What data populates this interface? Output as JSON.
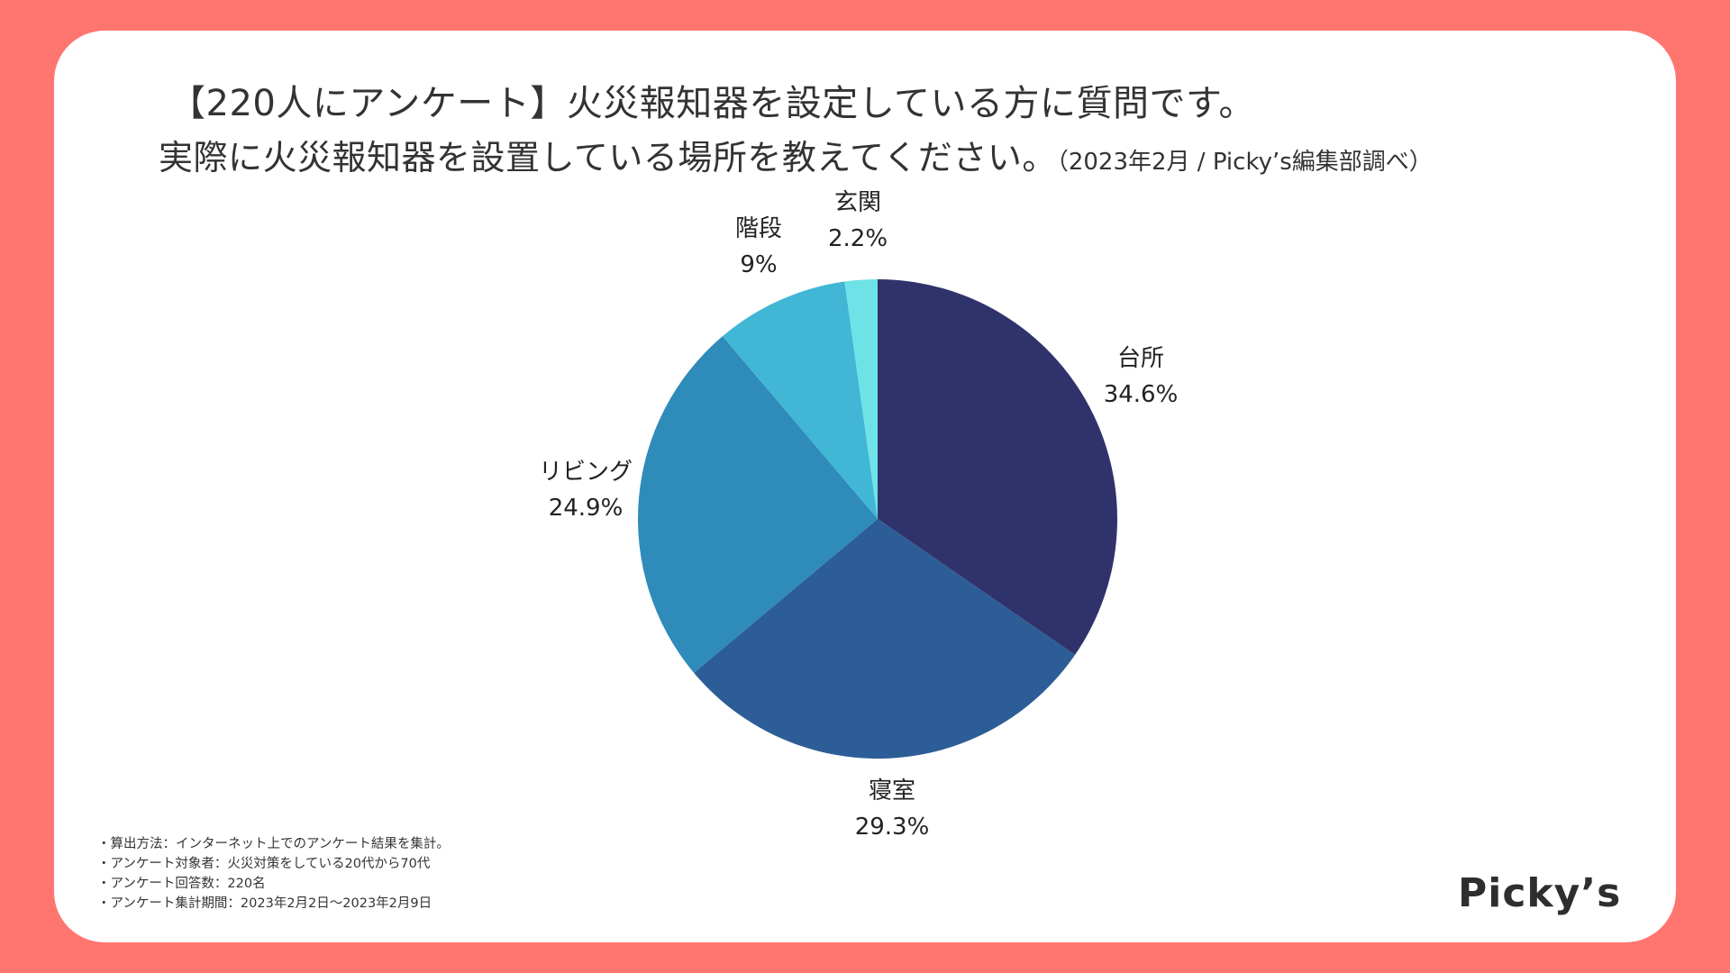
{
  "header": {
    "title_line1": "【220人にアンケート】火災報知器を設定している方に質問です。",
    "title_line2": "実際に火災報知器を設置している場所を教えてください。",
    "title_line2_note": "（2023年2月 / Picky’s編集部調べ）"
  },
  "chart_data": {
    "type": "pie",
    "title": "実際に火災報知器を設置している場所を教えてください。",
    "start_angle_deg": 0,
    "direction": "clockwise",
    "slices": [
      {
        "label": "台所",
        "value": 34.6,
        "value_label": "34.6%",
        "color": "#30336b"
      },
      {
        "label": "寝室",
        "value": 29.3,
        "value_label": "29.3%",
        "color": "#2d5d96"
      },
      {
        "label": "リビング",
        "value": 24.9,
        "value_label": "24.9%",
        "color": "#2e8bba"
      },
      {
        "label": "階段",
        "value": 9,
        "value_label": "9%",
        "color": "#41b6d5"
      },
      {
        "label": "玄関",
        "value": 2.2,
        "value_label": "2.2%",
        "color": "#6de3e8"
      }
    ]
  },
  "notes": [
    "・算出方法：インターネット上でのアンケート結果を集計。",
    "・アンケート対象者：火災対策をしている20代から70代",
    "・アンケート回答数：220名",
    "・アンケート集計期間：2023年2月2日〜2023年2月9日"
  ],
  "brand": {
    "logo_text": "Picky’s",
    "background_color": "#ff7671"
  }
}
